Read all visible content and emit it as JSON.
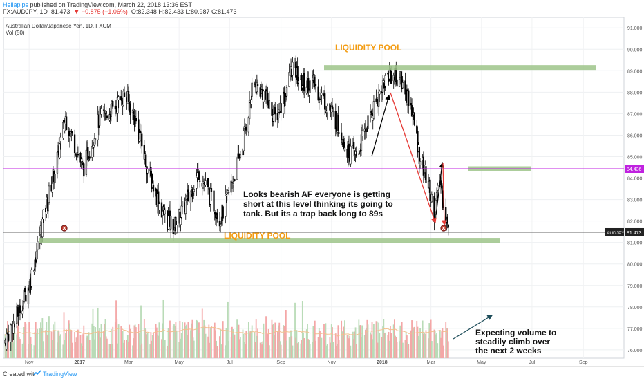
{
  "header": {
    "user": "Hellapips",
    "published_text": "published on TradingView.com, March 22, 2018 13:36 EST",
    "symbol": "FX:AUDJPY, 1D",
    "last": "81.473",
    "change": "▼ −0.875 (−1.06%)",
    "ohlc": "O:82.348 H:82.433 L:80.987 C:81.473"
  },
  "footer": {
    "created_with": "Created with",
    "brand": "TradingView"
  },
  "chart_data": {
    "type": "candlestick",
    "instrument_title": "Australian Dollar/Japanese Yen, 1D, FXCM",
    "volume_label": "Vol (50)",
    "x_ticks": [
      "Nov",
      "2017",
      "Mar",
      "May",
      "Jul",
      "Sep",
      "Nov",
      "2018",
      "Mar",
      "May",
      "Jul",
      "Sep"
    ],
    "y_ticks": [
      "91.000",
      "90.000",
      "89.000",
      "88.000",
      "87.000",
      "86.000",
      "85.000",
      "84.000",
      "83.000",
      "82.000",
      "81.000",
      "80.000",
      "79.000",
      "78.000",
      "77.000",
      "76.000"
    ],
    "y_range": [
      75.9,
      91.2
    ],
    "price_series": [
      {
        "t": "2016-10-01",
        "p": 76.3
      },
      {
        "t": "2016-10-15",
        "p": 77.4
      },
      {
        "t": "2016-11-01",
        "p": 79.0
      },
      {
        "t": "2016-11-10",
        "p": 80.6
      },
      {
        "t": "2016-11-20",
        "p": 82.5
      },
      {
        "t": "2016-12-01",
        "p": 84.2
      },
      {
        "t": "2016-12-15",
        "p": 86.8
      },
      {
        "t": "2016-12-25",
        "p": 85.7
      },
      {
        "t": "2017-01-05",
        "p": 84.4
      },
      {
        "t": "2017-01-25",
        "p": 86.8
      },
      {
        "t": "2017-02-10",
        "p": 87.2
      },
      {
        "t": "2017-02-25",
        "p": 87.9
      },
      {
        "t": "2017-03-10",
        "p": 86.6
      },
      {
        "t": "2017-03-25",
        "p": 84.3
      },
      {
        "t": "2017-04-10",
        "p": 82.5
      },
      {
        "t": "2017-04-25",
        "p": 81.7
      },
      {
        "t": "2017-05-10",
        "p": 82.9
      },
      {
        "t": "2017-05-25",
        "p": 84.3
      },
      {
        "t": "2017-06-10",
        "p": 82.9
      },
      {
        "t": "2017-06-20",
        "p": 82.1
      },
      {
        "t": "2017-07-01",
        "p": 83.4
      },
      {
        "t": "2017-07-15",
        "p": 85.3
      },
      {
        "t": "2017-07-30",
        "p": 88.4
      },
      {
        "t": "2017-08-10",
        "p": 88.0
      },
      {
        "t": "2017-08-25",
        "p": 86.8
      },
      {
        "t": "2017-09-05",
        "p": 87.8
      },
      {
        "t": "2017-09-15",
        "p": 89.2
      },
      {
        "t": "2017-09-25",
        "p": 88.4
      },
      {
        "t": "2017-10-10",
        "p": 88.4
      },
      {
        "t": "2017-10-25",
        "p": 87.5
      },
      {
        "t": "2017-11-10",
        "p": 86.4
      },
      {
        "t": "2017-11-20",
        "p": 85.3
      },
      {
        "t": "2017-12-01",
        "p": 85.0
      },
      {
        "t": "2017-12-15",
        "p": 86.6
      },
      {
        "t": "2018-01-01",
        "p": 88.3
      },
      {
        "t": "2018-01-10",
        "p": 88.9
      },
      {
        "t": "2018-01-25",
        "p": 88.5
      },
      {
        "t": "2018-02-05",
        "p": 87.4
      },
      {
        "t": "2018-02-15",
        "p": 85.1
      },
      {
        "t": "2018-02-25",
        "p": 83.8
      },
      {
        "t": "2018-03-05",
        "p": 82.4
      },
      {
        "t": "2018-03-12",
        "p": 83.9
      },
      {
        "t": "2018-03-22",
        "p": 81.473
      }
    ],
    "horizontal_line": {
      "label": "84.436",
      "value": 84.436,
      "color": "#c022e0"
    },
    "last_price": {
      "label": "81.473",
      "value": 81.473,
      "symbol": "AUDJPY"
    },
    "zones": [
      {
        "label": "LIQUIDITY POOL",
        "value": 89.15
      },
      {
        "label": "LIQUIDITY POOL",
        "value": 81.1
      },
      {
        "label": "",
        "value": 84.436
      }
    ],
    "annotations": [
      {
        "text": "Looks bearish AF everyone is getting",
        "line": 1
      },
      {
        "text": "short at this level thinking its going to",
        "line": 2
      },
      {
        "text": "tank. But its a trap back long to 89s",
        "line": 3
      }
    ],
    "volume_annotation": [
      "Expecting volume to",
      "steadily climb over",
      "the next 2 weeks"
    ],
    "colors": {
      "up": "#4caf50",
      "down": "#000000",
      "zone": "#9dc48a",
      "zone_label": "#f39c12",
      "arrow_red": "#e53935",
      "arrow_black": "#000000",
      "volume": "#f4a7a7",
      "volume_ma": "#f2c08f"
    }
  }
}
